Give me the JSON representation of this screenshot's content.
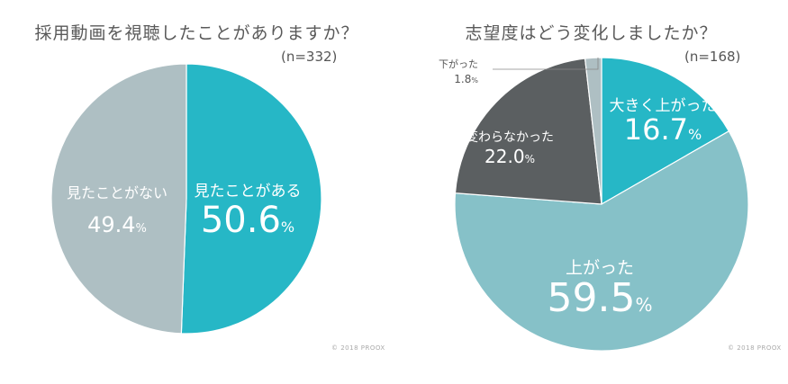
{
  "chart_data": [
    {
      "type": "pie",
      "title": "採用動画を視聴したことがありますか？",
      "sample_size": "(n=332)",
      "copyright": "© 2018 PROOX",
      "slices": [
        {
          "label": "見たことがある",
          "value": 50.6,
          "value_text": "50.6",
          "unit": "%",
          "color": "#26b7c6"
        },
        {
          "label": "見たことがない",
          "value": 49.4,
          "value_text": "49.4",
          "unit": "%",
          "color": "#aebfc3"
        }
      ]
    },
    {
      "type": "pie",
      "title": "志望度はどう変化しましたか？",
      "sample_size": "(n=168)",
      "copyright": "© 2018 PROOX",
      "slices": [
        {
          "label": "大きく上がった",
          "value": 16.7,
          "value_text": "16.7",
          "unit": "%",
          "color": "#26b7c6"
        },
        {
          "label": "上がった",
          "value": 59.5,
          "value_text": "59.5",
          "unit": "%",
          "color": "#86c1c8"
        },
        {
          "label": "変わらなかった",
          "value": 22.0,
          "value_text": "22.0",
          "unit": "%",
          "color": "#5b5f61"
        },
        {
          "label": "下がった",
          "value": 1.8,
          "value_text": "1.8",
          "unit": "%",
          "color": "#aebfc3"
        }
      ]
    }
  ]
}
